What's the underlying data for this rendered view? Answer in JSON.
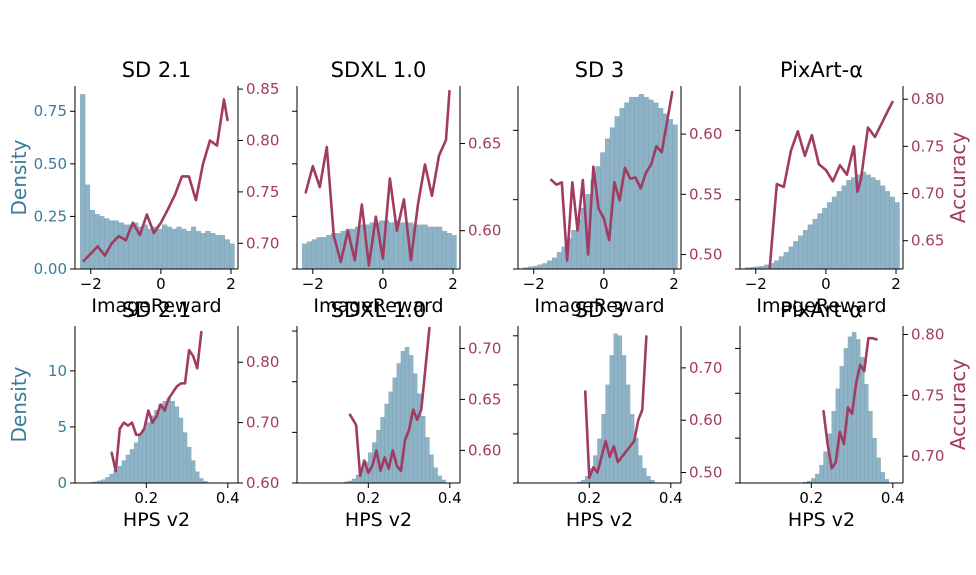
{
  "chart_data": [
    {
      "type": "bar+line",
      "title": "SD 2.1",
      "xlabel": "ImageReward",
      "ylabel_left": "Density",
      "ylabel_right": "",
      "xlim": [
        -2.45,
        2.2
      ],
      "ylim_left": [
        0,
        0.87
      ],
      "ylim_right": [
        0.675,
        0.853
      ],
      "xticks": [
        -2,
        0,
        2
      ],
      "xtick_labels": [
        "−2",
        "0",
        "2"
      ],
      "yticks_left": [
        0.0,
        0.25,
        0.5,
        0.75
      ],
      "ytick_labels_left": [
        "0.00",
        "0.25",
        "0.50",
        "0.75"
      ],
      "yticks_right": [
        0.7,
        0.75,
        0.8,
        0.85
      ],
      "ytick_labels_right": [
        "0.70",
        "0.75",
        "0.80",
        "0.85"
      ],
      "hist": {
        "start": -2.3,
        "width": 0.1375,
        "density": [
          0.83,
          0.4,
          0.28,
          0.26,
          0.25,
          0.24,
          0.23,
          0.23,
          0.22,
          0.21,
          0.21,
          0.22,
          0.2,
          0.21,
          0.19,
          0.2,
          0.19,
          0.21,
          0.2,
          0.19,
          0.2,
          0.19,
          0.18,
          0.2,
          0.18,
          0.17,
          0.18,
          0.17,
          0.16,
          0.16,
          0.14,
          0.12
        ]
      },
      "line": {
        "x": [
          -2.2,
          -2.0,
          -1.8,
          -1.6,
          -1.4,
          -1.2,
          -1.0,
          -0.8,
          -0.6,
          -0.4,
          -0.2,
          0.0,
          0.2,
          0.4,
          0.6,
          0.8,
          1.0,
          1.2,
          1.4,
          1.6,
          1.8,
          1.9
        ],
        "y": [
          0.683,
          0.69,
          0.697,
          0.688,
          0.7,
          0.707,
          0.703,
          0.72,
          0.708,
          0.728,
          0.71,
          0.72,
          0.733,
          0.747,
          0.765,
          0.765,
          0.742,
          0.777,
          0.8,
          0.795,
          0.84,
          0.82
        ]
      }
    },
    {
      "type": "bar+line",
      "title": "SDXL 1.0",
      "xlabel": "ImageReward",
      "ylabel_left": "",
      "ylabel_right": "",
      "xlim": [
        -2.45,
        2.2
      ],
      "ylim_left": [
        0,
        0.87
      ],
      "ylim_right": [
        0.578,
        0.683
      ],
      "xticks": [
        -2,
        0,
        2
      ],
      "xtick_labels": [
        "−2",
        "0",
        "2"
      ],
      "yticks_left": [
        0.0,
        0.25,
        0.5,
        0.75
      ],
      "ytick_labels_left": [
        "",
        "",
        "",
        ""
      ],
      "yticks_right": [
        0.6,
        0.65
      ],
      "ytick_labels_right": [
        "0.60",
        "0.65"
      ],
      "hist": {
        "start": -2.3,
        "width": 0.1375,
        "density": [
          0.12,
          0.13,
          0.14,
          0.15,
          0.15,
          0.16,
          0.17,
          0.17,
          0.18,
          0.19,
          0.19,
          0.2,
          0.21,
          0.21,
          0.22,
          0.22,
          0.23,
          0.23,
          0.22,
          0.23,
          0.22,
          0.22,
          0.22,
          0.21,
          0.21,
          0.21,
          0.2,
          0.2,
          0.2,
          0.18,
          0.17,
          0.16
        ]
      },
      "line": {
        "x": [
          -2.2,
          -2.0,
          -1.8,
          -1.6,
          -1.4,
          -1.2,
          -1.0,
          -0.8,
          -0.6,
          -0.4,
          -0.2,
          0.0,
          0.2,
          0.4,
          0.6,
          0.8,
          1.0,
          1.2,
          1.4,
          1.6,
          1.8,
          1.9
        ],
        "y": [
          0.622,
          0.637,
          0.625,
          0.648,
          0.597,
          0.582,
          0.6,
          0.583,
          0.615,
          0.58,
          0.608,
          0.584,
          0.63,
          0.6,
          0.618,
          0.583,
          0.615,
          0.638,
          0.62,
          0.643,
          0.652,
          0.68
        ]
      }
    },
    {
      "type": "bar+line",
      "title": "SD 3",
      "xlabel": "ImageReward",
      "ylabel_left": "",
      "ylabel_right": "",
      "xlim": [
        -2.45,
        2.2
      ],
      "ylim_left": [
        0,
        0.66
      ],
      "ylim_right": [
        0.488,
        0.64
      ],
      "xticks": [
        -2,
        0,
        2
      ],
      "xtick_labels": [
        "−2",
        "0",
        "2"
      ],
      "yticks_left": [
        0.0,
        0.25,
        0.5
      ],
      "ytick_labels_left": [
        "",
        "",
        ""
      ],
      "yticks_right": [
        0.5,
        0.55,
        0.6
      ],
      "ytick_labels_right": [
        "0.50",
        "0.55",
        "0.60"
      ],
      "hist": {
        "start": -2.3,
        "width": 0.1375,
        "density": [
          0.005,
          0.008,
          0.01,
          0.015,
          0.02,
          0.03,
          0.04,
          0.06,
          0.08,
          0.11,
          0.14,
          0.18,
          0.22,
          0.27,
          0.32,
          0.37,
          0.42,
          0.47,
          0.51,
          0.55,
          0.58,
          0.6,
          0.62,
          0.62,
          0.63,
          0.62,
          0.61,
          0.6,
          0.58,
          0.56,
          0.54,
          0.52
        ]
      },
      "line": {
        "x": [
          -1.5,
          -1.35,
          -1.2,
          -1.05,
          -0.9,
          -0.75,
          -0.6,
          -0.45,
          -0.3,
          -0.15,
          0.0,
          0.15,
          0.3,
          0.45,
          0.6,
          0.75,
          0.9,
          1.05,
          1.2,
          1.35,
          1.5,
          1.65,
          1.8,
          1.95
        ],
        "y": [
          0.562,
          0.558,
          0.56,
          0.495,
          0.56,
          0.52,
          0.562,
          0.5,
          0.573,
          0.538,
          0.53,
          0.512,
          0.56,
          0.545,
          0.572,
          0.563,
          0.564,
          0.555,
          0.568,
          0.575,
          0.59,
          0.585,
          0.61,
          0.635
        ]
      }
    },
    {
      "type": "bar+line",
      "title": "PixArt-α",
      "xlabel": "ImageReward",
      "ylabel_left": "",
      "ylabel_right": "Accuracy",
      "xlim": [
        -2.45,
        2.2
      ],
      "ylim_left": [
        0,
        0.66
      ],
      "ylim_right": [
        0.62,
        0.814
      ],
      "xticks": [
        -2,
        0,
        2
      ],
      "xtick_labels": [
        "−2",
        "0",
        "2"
      ],
      "yticks_left": [
        0.0,
        0.25,
        0.5
      ],
      "ytick_labels_left": [
        "",
        "",
        ""
      ],
      "yticks_right": [
        0.65,
        0.7,
        0.75,
        0.8
      ],
      "ytick_labels_right": [
        "0.65",
        "0.70",
        "0.75",
        "0.80"
      ],
      "hist": {
        "start": -2.3,
        "width": 0.1375,
        "density": [
          0.005,
          0.006,
          0.008,
          0.01,
          0.015,
          0.02,
          0.03,
          0.045,
          0.06,
          0.08,
          0.1,
          0.12,
          0.14,
          0.16,
          0.18,
          0.2,
          0.22,
          0.24,
          0.26,
          0.28,
          0.3,
          0.32,
          0.33,
          0.34,
          0.35,
          0.34,
          0.33,
          0.32,
          0.3,
          0.28,
          0.26,
          0.24
        ]
      },
      "line": {
        "x": [
          -1.6,
          -1.4,
          -1.2,
          -1.0,
          -0.8,
          -0.6,
          -0.4,
          -0.2,
          0.0,
          0.2,
          0.4,
          0.6,
          0.8,
          0.9,
          1.0,
          1.2,
          1.4,
          1.6,
          1.8,
          1.9
        ],
        "y": [
          0.622,
          0.71,
          0.707,
          0.745,
          0.766,
          0.74,
          0.762,
          0.731,
          0.725,
          0.713,
          0.73,
          0.72,
          0.75,
          0.702,
          0.715,
          0.77,
          0.76,
          0.775,
          0.79,
          0.797
        ]
      }
    },
    {
      "type": "bar+line",
      "title": "SD 2.1",
      "xlabel": "HPS v2",
      "ylabel_left": "Density",
      "ylabel_right": "",
      "xlim": [
        0.025,
        0.425
      ],
      "ylim_left": [
        0,
        14.0
      ],
      "ylim_right": [
        0.6,
        0.86
      ],
      "xticks": [
        0.2,
        0.4
      ],
      "xtick_labels": [
        "0.2",
        "0.4"
      ],
      "yticks_left": [
        0,
        5,
        10
      ],
      "ytick_labels_left": [
        "0",
        "5",
        "10"
      ],
      "yticks_right": [
        0.6,
        0.7,
        0.8
      ],
      "ytick_labels_right": [
        "0.60",
        "0.70",
        "0.80"
      ],
      "hist": {
        "start": 0.06,
        "width": 0.01,
        "density": [
          0.05,
          0.1,
          0.2,
          0.3,
          0.5,
          0.8,
          1.1,
          1.5,
          2.0,
          2.5,
          3.0,
          3.6,
          4.2,
          4.8,
          5.4,
          6.0,
          6.5,
          7.0,
          7.3,
          7.5,
          7.3,
          6.8,
          5.8,
          4.5,
          3.2,
          2.0,
          1.0,
          0.4,
          0.15
        ]
      },
      "line": {
        "x": [
          0.115,
          0.125,
          0.135,
          0.145,
          0.155,
          0.165,
          0.175,
          0.185,
          0.195,
          0.205,
          0.215,
          0.225,
          0.235,
          0.245,
          0.255,
          0.265,
          0.275,
          0.285,
          0.295,
          0.305,
          0.315,
          0.325,
          0.335
        ],
        "y": [
          0.65,
          0.62,
          0.69,
          0.7,
          0.695,
          0.7,
          0.68,
          0.68,
          0.69,
          0.72,
          0.7,
          0.71,
          0.73,
          0.72,
          0.74,
          0.75,
          0.76,
          0.765,
          0.765,
          0.82,
          0.81,
          0.79,
          0.85
        ]
      }
    },
    {
      "type": "bar+line",
      "title": "SDXL 1.0",
      "xlabel": "HPS v2",
      "ylabel_left": "",
      "ylabel_right": "",
      "xlim": [
        0.025,
        0.425
      ],
      "ylim_left": [
        0,
        15.5
      ],
      "ylim_right": [
        0.568,
        0.722
      ],
      "xticks": [
        0.2,
        0.4
      ],
      "xtick_labels": [
        "0.2",
        "0.4"
      ],
      "yticks_left": [
        0,
        5,
        10,
        15
      ],
      "ytick_labels_left": [
        "",
        "",
        "",
        ""
      ],
      "yticks_right": [
        0.6,
        0.65,
        0.7
      ],
      "ytick_labels_right": [
        "0.60",
        "0.65",
        "0.70"
      ],
      "hist": {
        "start": 0.14,
        "width": 0.01,
        "density": [
          0.1,
          0.2,
          0.4,
          0.8,
          1.4,
          2.1,
          3.0,
          4.0,
          5.2,
          6.5,
          7.8,
          9.0,
          10.4,
          11.8,
          13.0,
          13.4,
          12.6,
          10.8,
          8.8,
          6.6,
          4.5,
          2.8,
          1.5,
          0.7,
          0.3
        ]
      },
      "line": {
        "x": [
          0.155,
          0.17,
          0.18,
          0.19,
          0.2,
          0.21,
          0.22,
          0.23,
          0.24,
          0.25,
          0.26,
          0.27,
          0.28,
          0.29,
          0.3,
          0.31,
          0.32,
          0.33,
          0.34,
          0.35
        ],
        "y": [
          0.635,
          0.625,
          0.575,
          0.59,
          0.578,
          0.585,
          0.6,
          0.58,
          0.593,
          0.582,
          0.6,
          0.585,
          0.58,
          0.61,
          0.62,
          0.64,
          0.63,
          0.64,
          0.68,
          0.72
        ]
      }
    },
    {
      "type": "bar+line",
      "title": "SD 3",
      "xlabel": "HPS v2",
      "ylabel_left": "",
      "ylabel_right": "",
      "xlim": [
        0.025,
        0.425
      ],
      "ylim_left": [
        0,
        16.0
      ],
      "ylim_right": [
        0.48,
        0.78
      ],
      "xticks": [
        0.2,
        0.4
      ],
      "xtick_labels": [
        "0.2",
        "0.4"
      ],
      "yticks_left": [
        0,
        5,
        10,
        15
      ],
      "ytick_labels_left": [
        "",
        "",
        "",
        ""
      ],
      "yticks_right": [
        0.5,
        0.6,
        0.7
      ],
      "ytick_labels_right": [
        "0.50",
        "0.60",
        "0.70"
      ],
      "hist": {
        "start": 0.17,
        "width": 0.01,
        "density": [
          0.1,
          0.3,
          0.7,
          1.5,
          2.8,
          4.5,
          7.0,
          10.0,
          13.0,
          15.2,
          15.0,
          13.0,
          10.0,
          7.0,
          4.6,
          2.8,
          1.5,
          0.7,
          0.3
        ]
      },
      "line": {
        "x": [
          0.19,
          0.2,
          0.21,
          0.22,
          0.23,
          0.24,
          0.25,
          0.26,
          0.27,
          0.28,
          0.29,
          0.3,
          0.31,
          0.32,
          0.33,
          0.34
        ],
        "y": [
          0.655,
          0.49,
          0.51,
          0.5,
          0.53,
          0.56,
          0.53,
          0.55,
          0.52,
          0.53,
          0.54,
          0.55,
          0.56,
          0.6,
          0.62,
          0.76
        ]
      }
    },
    {
      "type": "bar+line",
      "title": "PixArt-α",
      "xlabel": "HPS v2",
      "ylabel_left": "",
      "ylabel_right": "Accuracy",
      "xlim": [
        0.025,
        0.425
      ],
      "ylim_left": [
        0,
        17.5
      ],
      "ylim_right": [
        0.678,
        0.807
      ],
      "xticks": [
        0.2,
        0.4
      ],
      "xtick_labels": [
        "0.2",
        "0.4"
      ],
      "yticks_left": [
        0,
        5,
        10,
        15
      ],
      "ytick_labels_left": [
        "",
        "",
        "",
        ""
      ],
      "yticks_right": [
        0.7,
        0.75,
        0.8
      ],
      "ytick_labels_right": [
        "0.70",
        "0.75",
        "0.80"
      ],
      "hist": {
        "start": 0.18,
        "width": 0.01,
        "density": [
          0.1,
          0.2,
          0.5,
          1.0,
          2.0,
          3.5,
          5.5,
          8.0,
          10.5,
          13.0,
          15.0,
          16.3,
          16.8,
          16.0,
          14.0,
          11.0,
          8.0,
          5.0,
          2.8,
          1.2,
          0.4
        ]
      },
      "line": {
        "x": [
          0.23,
          0.24,
          0.25,
          0.26,
          0.27,
          0.28,
          0.29,
          0.3,
          0.31,
          0.32,
          0.33,
          0.34,
          0.35,
          0.36
        ],
        "y": [
          0.737,
          0.71,
          0.69,
          0.695,
          0.72,
          0.71,
          0.74,
          0.735,
          0.76,
          0.775,
          0.77,
          0.797,
          0.797,
          0.796
        ]
      }
    }
  ]
}
